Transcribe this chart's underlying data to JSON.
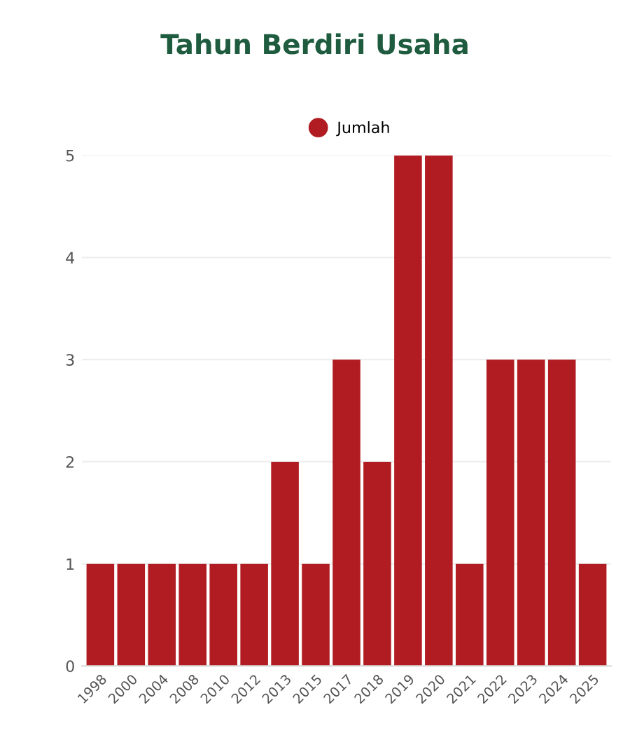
{
  "chart_data": {
    "type": "bar",
    "title": "Tahun Berdiri Usaha",
    "categories": [
      "1998",
      "2000",
      "2004",
      "2008",
      "2010",
      "2012",
      "2013",
      "2015",
      "2017",
      "2018",
      "2019",
      "2020",
      "2021",
      "2022",
      "2023",
      "2024",
      "2025"
    ],
    "series": [
      {
        "name": "Jumlah",
        "color": "#b01c22",
        "values": [
          1,
          1,
          1,
          1,
          1,
          1,
          2,
          1,
          3,
          2,
          5,
          5,
          1,
          3,
          3,
          3,
          1
        ]
      }
    ],
    "ylim": [
      0,
      5
    ],
    "yticks": [
      0,
      1,
      2,
      3,
      4,
      5
    ],
    "grid": "y",
    "legend": "top"
  }
}
